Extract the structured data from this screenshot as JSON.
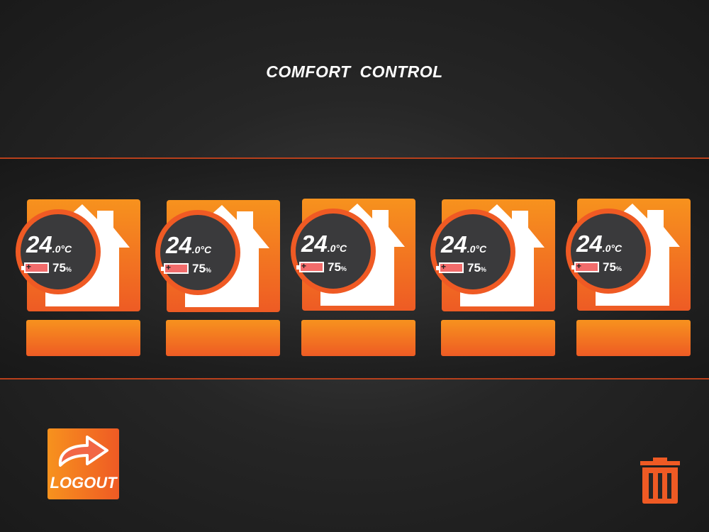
{
  "header": {
    "title": "COMFORT  CONTROL"
  },
  "zones": [
    {
      "temp_whole": "24",
      "temp_frac": ".0°C",
      "battery_percent": "75",
      "percent_sign": "%",
      "battery_level": 0.75,
      "label": ""
    },
    {
      "temp_whole": "24",
      "temp_frac": ".0°C",
      "battery_percent": "75",
      "percent_sign": "%",
      "battery_level": 0.75,
      "label": ""
    },
    {
      "temp_whole": "24",
      "temp_frac": ".0°C",
      "battery_percent": "75",
      "percent_sign": "%",
      "battery_level": 0.75,
      "label": ""
    },
    {
      "temp_whole": "24",
      "temp_frac": ".0°C",
      "battery_percent": "75",
      "percent_sign": "%",
      "battery_level": 0.75,
      "label": ""
    },
    {
      "temp_whole": "24",
      "temp_frac": ".0°C",
      "battery_percent": "75",
      "percent_sign": "%",
      "battery_level": 0.75,
      "label": ""
    }
  ],
  "footer": {
    "logout_label": "LOGOUT",
    "logout_icon": "share-arrow-icon",
    "delete_icon": "trash-icon"
  },
  "colors": {
    "accent": "#ef5a24",
    "accent_light": "#f7921e",
    "battery": "#f26b6b"
  }
}
